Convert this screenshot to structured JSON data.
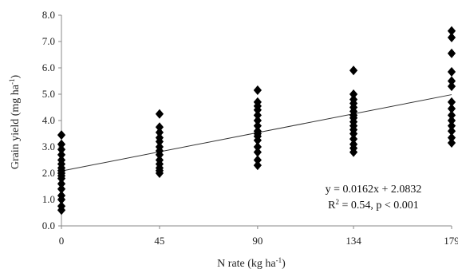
{
  "chart_data": {
    "type": "scatter",
    "xlabel": "N rate (kg ha",
    "xlabel_sup": "-1",
    "xlabel_close": ")",
    "ylabel": "Grain yield (mg ha",
    "ylabel_sup": "-1",
    "ylabel_close": ")",
    "x_ticks": [
      0,
      45,
      90,
      134,
      179
    ],
    "y_ticks": [
      "0.0",
      "1.0",
      "2.0",
      "3.0",
      "4.0",
      "5.0",
      "6.0",
      "7.0",
      "8.0"
    ],
    "xlim": [
      0,
      179
    ],
    "ylim": [
      0,
      8
    ],
    "grid": false,
    "marker": "diamond",
    "marker_color": "#000000",
    "series": [
      {
        "points": [
          [
            0,
            0.6
          ],
          [
            0,
            0.75
          ],
          [
            0,
            1.0
          ],
          [
            0,
            1.15
          ],
          [
            0,
            1.4
          ],
          [
            0,
            1.6
          ],
          [
            0,
            1.8
          ],
          [
            0,
            1.9
          ],
          [
            0,
            2.0
          ],
          [
            0,
            2.1
          ],
          [
            0,
            2.2
          ],
          [
            0,
            2.35
          ],
          [
            0,
            2.5
          ],
          [
            0,
            2.7
          ],
          [
            0,
            2.9
          ],
          [
            0,
            3.1
          ],
          [
            0,
            3.45
          ],
          [
            45,
            2.0
          ],
          [
            45,
            2.1
          ],
          [
            45,
            2.2
          ],
          [
            45,
            2.35
          ],
          [
            45,
            2.5
          ],
          [
            45,
            2.7
          ],
          [
            45,
            2.85
          ],
          [
            45,
            3.0
          ],
          [
            45,
            3.2
          ],
          [
            45,
            3.35
          ],
          [
            45,
            3.55
          ],
          [
            45,
            3.75
          ],
          [
            45,
            4.25
          ],
          [
            90,
            2.3
          ],
          [
            90,
            2.5
          ],
          [
            90,
            2.8
          ],
          [
            90,
            3.0
          ],
          [
            90,
            3.25
          ],
          [
            90,
            3.4
          ],
          [
            90,
            3.5
          ],
          [
            90,
            3.6
          ],
          [
            90,
            3.8
          ],
          [
            90,
            4.0
          ],
          [
            90,
            4.2
          ],
          [
            90,
            4.4
          ],
          [
            90,
            4.55
          ],
          [
            90,
            4.7
          ],
          [
            90,
            5.15
          ],
          [
            134,
            2.8
          ],
          [
            134,
            2.95
          ],
          [
            134,
            3.1
          ],
          [
            134,
            3.3
          ],
          [
            134,
            3.5
          ],
          [
            134,
            3.65
          ],
          [
            134,
            3.8
          ],
          [
            134,
            3.95
          ],
          [
            134,
            4.1
          ],
          [
            134,
            4.2
          ],
          [
            134,
            4.35
          ],
          [
            134,
            4.5
          ],
          [
            134,
            4.65
          ],
          [
            134,
            4.8
          ],
          [
            134,
            5.0
          ],
          [
            134,
            5.9
          ],
          [
            179,
            3.15
          ],
          [
            179,
            3.35
          ],
          [
            179,
            3.6
          ],
          [
            179,
            3.8
          ],
          [
            179,
            4.0
          ],
          [
            179,
            4.2
          ],
          [
            179,
            4.45
          ],
          [
            179,
            4.7
          ],
          [
            179,
            5.3
          ],
          [
            179,
            5.5
          ],
          [
            179,
            5.85
          ],
          [
            179,
            6.55
          ],
          [
            179,
            7.15
          ],
          [
            179,
            7.4
          ]
        ]
      }
    ],
    "trendline": {
      "slope": 0.0162,
      "intercept": 2.0832,
      "x_range": [
        0,
        179
      ],
      "color": "#333333"
    },
    "annotations": {
      "equation": "y = 0.0162x + 2.0832",
      "r2_prefix": "R",
      "r2_sup": "2",
      "r2_rest": " = 0.54, p < 0.001"
    }
  }
}
